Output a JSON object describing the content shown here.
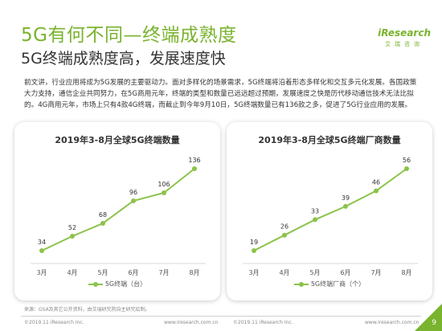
{
  "header": {
    "title": "5G有何不同—终端成熟度",
    "subtitle": "5G终端成熟度高，发展速度快"
  },
  "logo": {
    "main": "iResearch",
    "sub": "艾瑞咨询"
  },
  "body_text": "前文讲，行业应用将成为5G发展的主要驱动力。面对多样化的场景需求，5G终端将沿着形态多样化和交互多元化发展。各国政策大力支持，通信企业共同努力，在5G商用元年，终端的类型和数量已远远超过预期，发展速度之快是历代移动通信技术无法比拟的。4G商用元年，市场上只有4款4G终端，而截止到今年9月10日，5G终端数量已有136款之多，促进了5G行业应用的发展。",
  "colors": {
    "accent": "#7ab32e",
    "series": "#8bc34a"
  },
  "chart_data": [
    {
      "type": "line",
      "title": "2019年3-8月全球5G终端数量",
      "categories": [
        "3月",
        "4月",
        "5月",
        "6月",
        "7月",
        "8月"
      ],
      "series": [
        {
          "name": "5G终端（台）",
          "values": [
            34,
            52,
            68,
            96,
            106,
            136
          ]
        }
      ],
      "legend": "bottom",
      "grid": false
    },
    {
      "type": "line",
      "title": "2019年3-8月全球5G终端厂商数量",
      "categories": [
        "3月",
        "4月",
        "5月",
        "6月",
        "7月",
        "8月"
      ],
      "series": [
        {
          "name": "5G终端厂商（个）",
          "values": [
            19,
            26,
            33,
            39,
            46,
            56
          ]
        }
      ],
      "legend": "bottom",
      "grid": false
    }
  ],
  "source": "来源：GSA及其它公开资料，由艾瑞研究院自主研究绘制。",
  "footer": {
    "copyright": "©2019.11 iResearch Inc.",
    "url": "www.iresearch.com.cn"
  },
  "page_number": "9"
}
